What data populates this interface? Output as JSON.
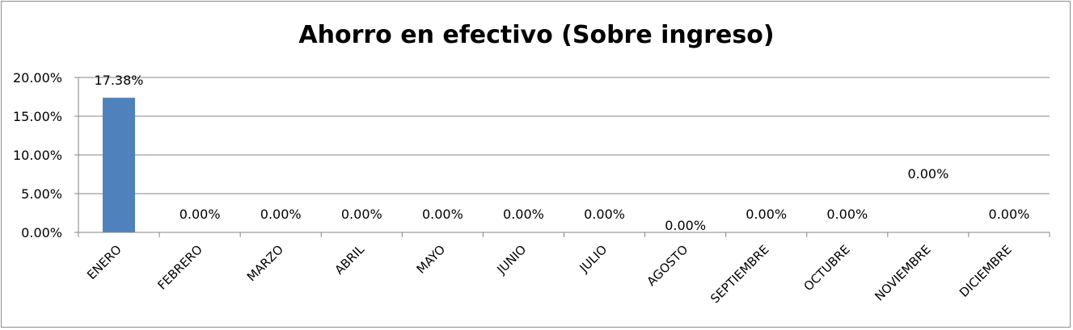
{
  "chart_data": {
    "type": "bar",
    "title": "Ahorro en efectivo (Sobre ingreso)",
    "categories": [
      "ENERO",
      "FEBRERO",
      "MARZO",
      "ABRIL",
      "MAYO",
      "JUNIO",
      "JULIO",
      "AGOSTO",
      "SEPTIEMBRE",
      "OCTUBRE",
      "NOVIEMBRE",
      "DICIEMBRE"
    ],
    "values": [
      0.1738,
      0,
      0,
      0,
      0,
      0,
      0,
      0,
      0,
      0,
      0,
      0
    ],
    "data_labels": [
      "17.38%",
      "0.00%",
      "0.00%",
      "0.00%",
      "0.00%",
      "0.00%",
      "0.00%",
      "0.00%",
      "0.00%",
      "0.00%",
      "0.00%",
      "0.00%"
    ],
    "ylim": [
      0,
      0.2
    ],
    "yticks": [
      "0.00%",
      "5.00%",
      "10.00%",
      "15.00%",
      "20.00%"
    ],
    "grid": true,
    "bar_color": "#4f81bd"
  }
}
